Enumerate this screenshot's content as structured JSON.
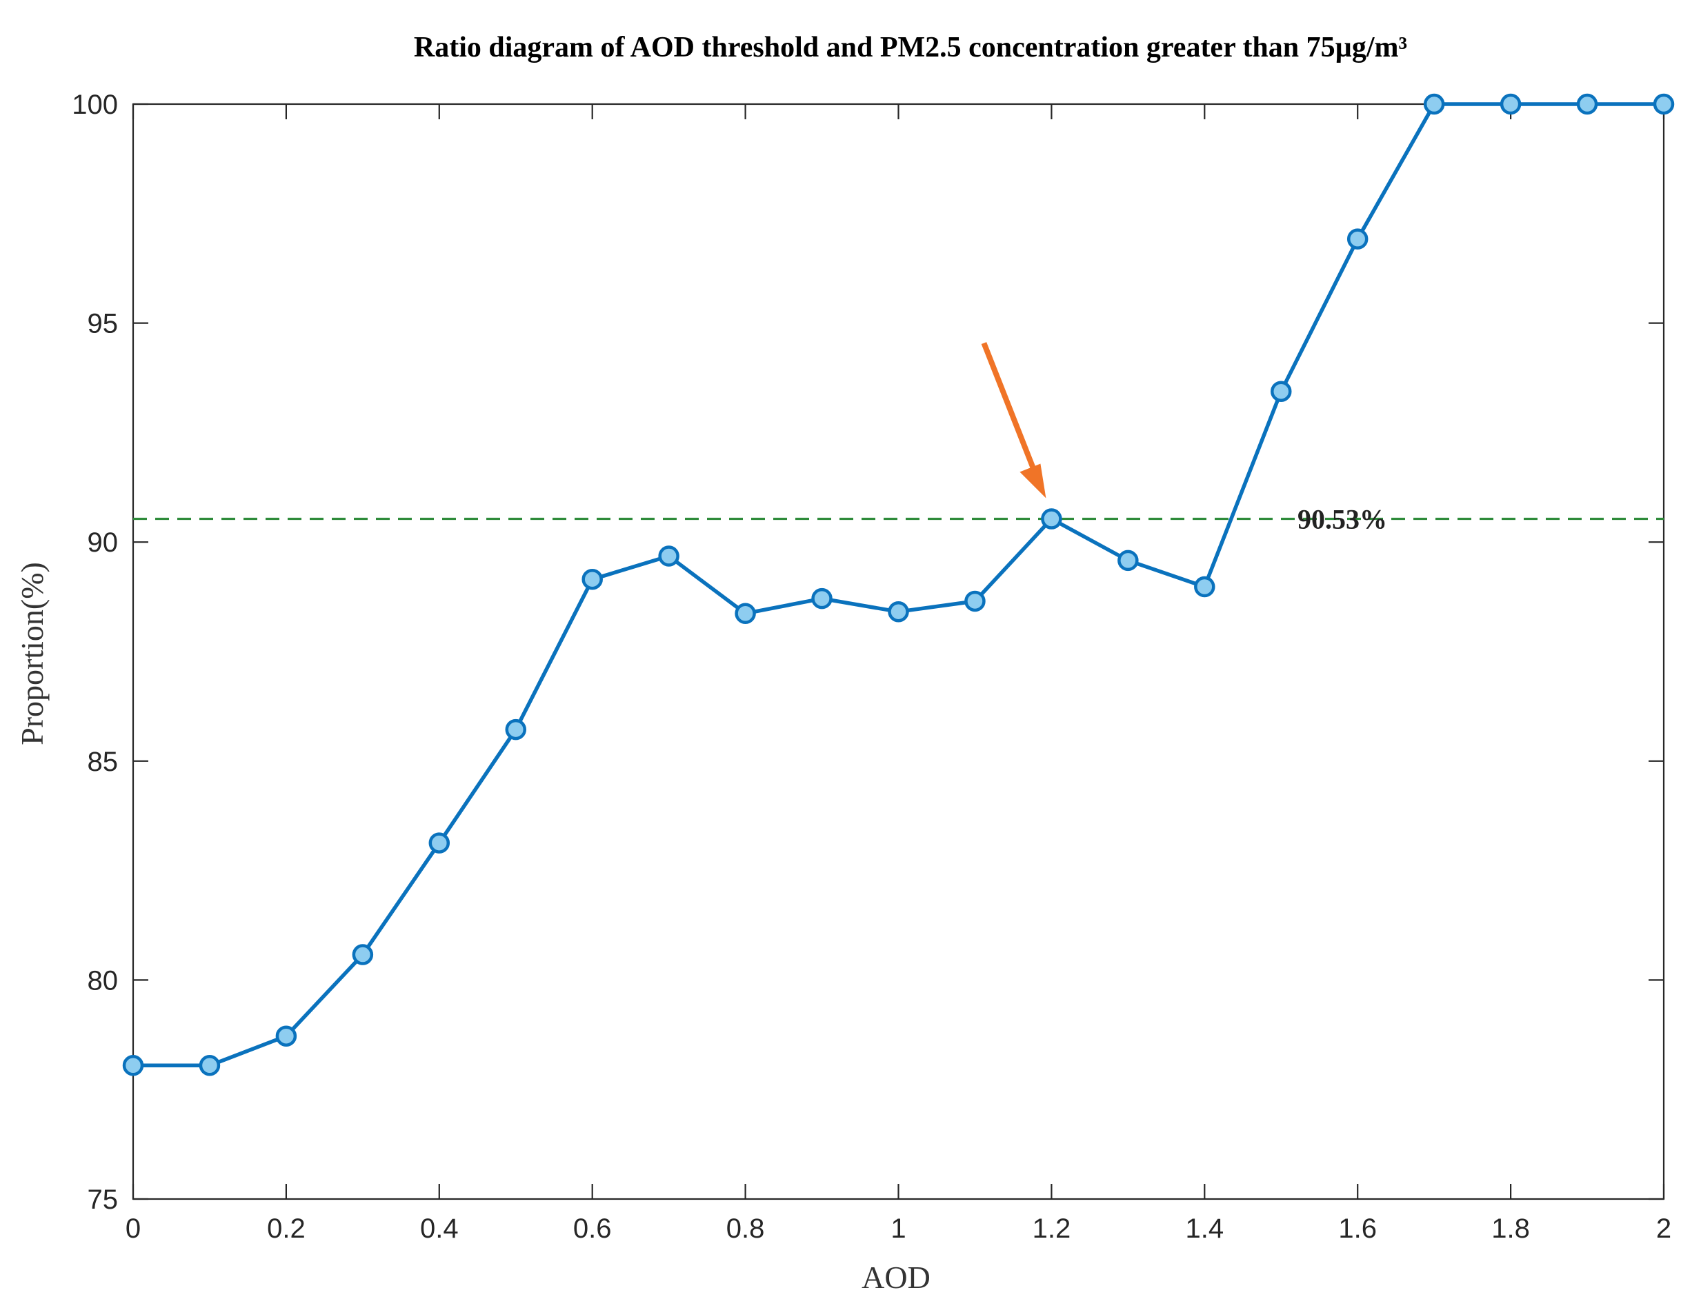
{
  "chart_data": {
    "type": "line",
    "title": "Ratio diagram of AOD threshold and PM2.5 concentration greater than 75µg/m³",
    "xlabel": "AOD",
    "ylabel": "Proportion(%)",
    "xlim": [
      0,
      2
    ],
    "ylim": [
      75,
      100
    ],
    "xticks": [
      0,
      0.2,
      0.4,
      0.6,
      0.8,
      1,
      1.2,
      1.4,
      1.6,
      1.8,
      2
    ],
    "xtick_labels": [
      "0",
      "0.2",
      "0.4",
      "0.6",
      "0.8",
      "1",
      "1.2",
      "1.4",
      "1.6",
      "1.8",
      "2"
    ],
    "yticks": [
      75,
      80,
      85,
      90,
      95,
      100
    ],
    "ytick_labels": [
      "75",
      "80",
      "85",
      "90",
      "95",
      "100"
    ],
    "grid": false,
    "series": [
      {
        "name": "Proportion",
        "color": "#0a72bd",
        "marker_fill": "#8ecdf0",
        "x": [
          0,
          0.1,
          0.2,
          0.3,
          0.4,
          0.5,
          0.6,
          0.7,
          0.8,
          0.9,
          1.0,
          1.1,
          1.2,
          1.3,
          1.4,
          1.5,
          1.6,
          1.7,
          1.8,
          1.9,
          2.0
        ],
        "y": [
          78.05,
          78.05,
          78.72,
          80.58,
          83.13,
          85.72,
          89.15,
          89.68,
          88.37,
          88.71,
          88.41,
          88.65,
          90.53,
          89.58,
          88.98,
          93.44,
          96.92,
          100,
          100,
          100,
          100
        ]
      }
    ],
    "reference_line": {
      "y": 90.53,
      "style": "dashed",
      "color": "#2e8b3a",
      "label": "90.53%"
    },
    "annotation_arrow": {
      "color": "#f07427",
      "target_x": 1.2,
      "target_y": 90.53
    }
  }
}
